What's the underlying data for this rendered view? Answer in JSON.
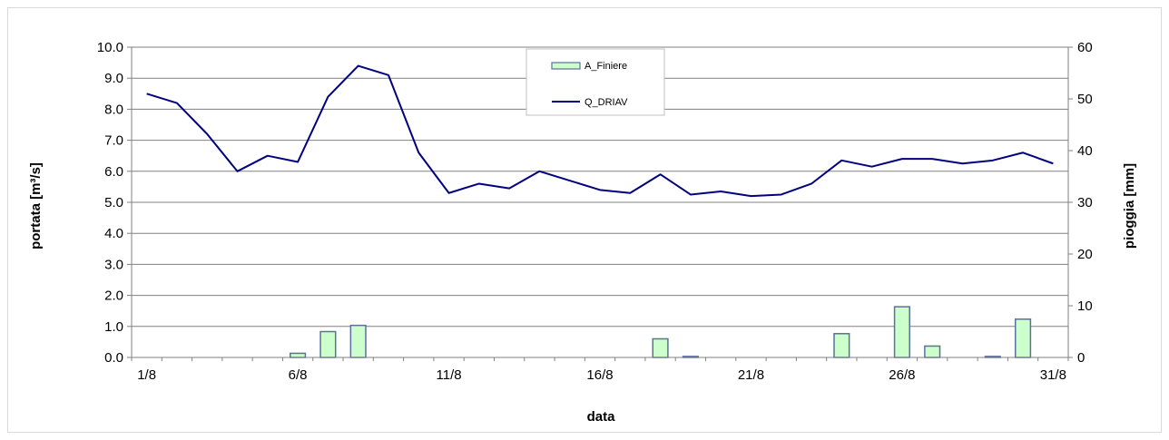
{
  "chart_data": {
    "type": "bar+line",
    "xlabel": "data",
    "ylabel_left": "portata [m³/s]",
    "ylabel_right": "pioggia [mm]",
    "ylim_left": [
      0,
      10
    ],
    "ylim_right": [
      0,
      60
    ],
    "left_ticks": [
      "0.0",
      "1.0",
      "2.0",
      "3.0",
      "4.0",
      "5.0",
      "6.0",
      "7.0",
      "8.0",
      "9.0",
      "10.0"
    ],
    "right_ticks": [
      "0",
      "10",
      "20",
      "30",
      "40",
      "50",
      "60"
    ],
    "x_tick_labels": [
      "1/8",
      "6/8",
      "11/8",
      "16/8",
      "21/8",
      "26/8",
      "31/8"
    ],
    "grid": "horizontal",
    "legend_position": "top-center",
    "colors": {
      "bar_fill": "#ccffcc",
      "bar_stroke": "#5b6fa0",
      "line": "#000080",
      "grid": "#808080"
    },
    "series": [
      {
        "name": "A_Finiere",
        "kind": "bar",
        "axis": "right",
        "x": [
          1,
          2,
          3,
          4,
          5,
          6,
          7,
          8,
          9,
          10,
          11,
          12,
          13,
          14,
          15,
          16,
          17,
          18,
          19,
          20,
          21,
          22,
          23,
          24,
          25,
          26,
          27,
          28,
          29,
          30,
          31
        ],
        "values": [
          0,
          0,
          0,
          0,
          0,
          0.8,
          5,
          6.2,
          0,
          0,
          0,
          0,
          0,
          0,
          0,
          0,
          0,
          3.6,
          0.2,
          0,
          0,
          0,
          0,
          4.6,
          0,
          9.8,
          2.2,
          0,
          0.2,
          7.4,
          0
        ]
      },
      {
        "name": "Q_DRIAV",
        "kind": "line",
        "axis": "left",
        "x": [
          1,
          2,
          3,
          4,
          5,
          6,
          7,
          8,
          9,
          10,
          11,
          12,
          13,
          14,
          15,
          16,
          17,
          18,
          19,
          20,
          21,
          22,
          23,
          24,
          25,
          26,
          27,
          28,
          29,
          30,
          31
        ],
        "values": [
          8.5,
          8.2,
          7.2,
          6.0,
          6.5,
          6.3,
          8.4,
          9.4,
          9.1,
          6.6,
          5.3,
          5.6,
          5.45,
          6.0,
          5.7,
          5.4,
          5.3,
          5.9,
          5.25,
          5.35,
          5.2,
          5.25,
          5.6,
          6.35,
          6.15,
          6.4,
          6.4,
          6.25,
          6.35,
          6.6,
          6.25
        ]
      }
    ]
  }
}
